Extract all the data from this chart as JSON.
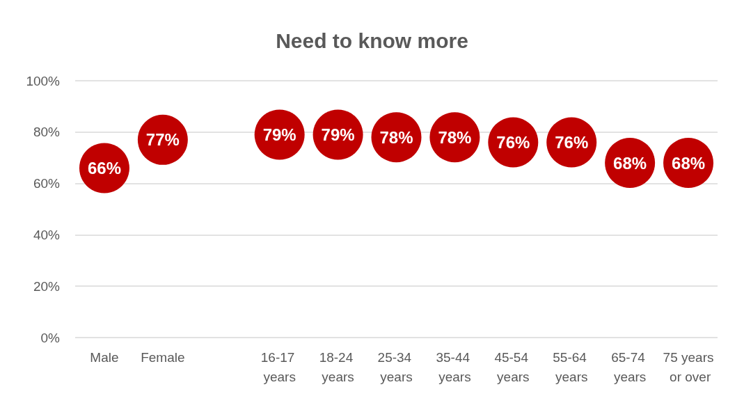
{
  "chart_data": {
    "type": "scatter",
    "title": "Need to know more",
    "categories": [
      "Male",
      "Female",
      null,
      "16-17 years",
      "18-24 years",
      "25-34 years",
      "35-44 years",
      "45-54 years",
      "55-64 years",
      "65-74 years",
      "75 years or over"
    ],
    "series": [
      {
        "color": "#c00000",
        "values": [
          66,
          77,
          null,
          79,
          79,
          78,
          78,
          76,
          76,
          68,
          68
        ],
        "value_labels": [
          "66%",
          "77%",
          null,
          "79%",
          "79%",
          "78%",
          "78%",
          "76%",
          "76%",
          "68%",
          "68%"
        ]
      }
    ],
    "ylim": [
      0,
      100
    ],
    "yticks": [
      {
        "value": 0,
        "label": "0%"
      },
      {
        "value": 20,
        "label": "20%"
      },
      {
        "value": 40,
        "label": "40%"
      },
      {
        "value": 60,
        "label": "60%"
      },
      {
        "value": 80,
        "label": "80%"
      },
      {
        "value": 100,
        "label": "100%"
      }
    ],
    "grid": "y",
    "marker": "circle"
  }
}
